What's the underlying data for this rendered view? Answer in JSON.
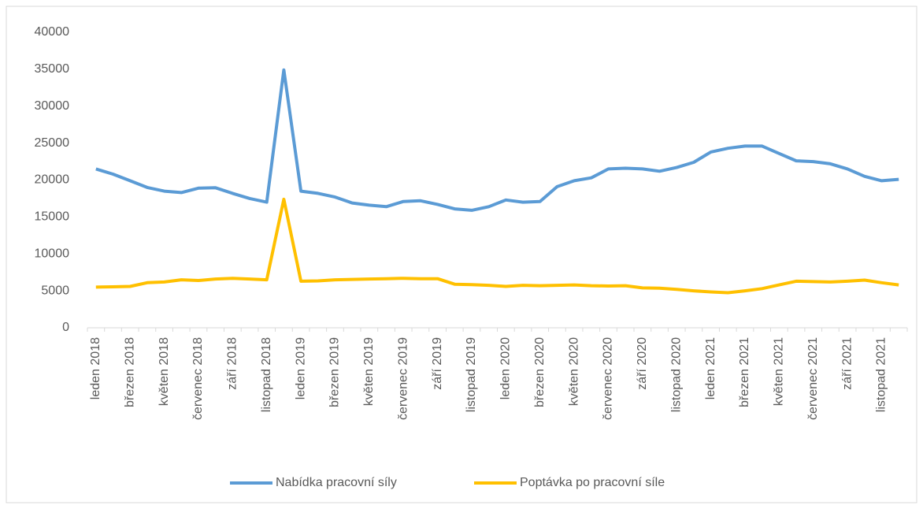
{
  "chart_data": {
    "type": "line",
    "categories": [
      "leden 2018",
      null,
      "březen 2018",
      null,
      "květen 2018",
      null,
      "červenec 2018",
      null,
      "září 2018",
      null,
      "listopad 2018",
      null,
      "leden 2019",
      null,
      "březen 2019",
      null,
      "květen 2019",
      null,
      "červenec 2019",
      null,
      "září 2019",
      null,
      "listopad 2019",
      null,
      "leden 2020",
      null,
      "březen 2020",
      null,
      "květen 2020",
      null,
      "červenec 2020",
      null,
      "září 2020",
      null,
      "listopad 2020",
      null,
      "leden 2021",
      null,
      "březen 2021",
      null,
      "květen 2021",
      null,
      "červenec 2021",
      null,
      "září 2021",
      null,
      "listopad 2021",
      null
    ],
    "series": [
      {
        "name": "Nabídka pracovní síly",
        "color": "#5b9bd5",
        "values": [
          21500,
          20800,
          19900,
          19000,
          18500,
          18300,
          18900,
          18950,
          18200,
          17500,
          17000,
          34900,
          18500,
          18200,
          17700,
          16900,
          16600,
          16400,
          17100,
          17200,
          16700,
          16100,
          15900,
          16400,
          17300,
          17000,
          17100,
          19100,
          19900,
          20300,
          21500,
          21600,
          21500,
          21200,
          21700,
          22400,
          23800,
          24300,
          24600,
          24600,
          23600,
          22600,
          22500,
          22200,
          21500,
          20500,
          19900,
          20100
        ]
      },
      {
        "name": "Poptávka po pracovní síle",
        "color": "#ffc000",
        "values": [
          5500,
          5550,
          5600,
          6100,
          6200,
          6500,
          6400,
          6600,
          6700,
          6600,
          6500,
          17400,
          6300,
          6350,
          6500,
          6550,
          6600,
          6650,
          6700,
          6650,
          6650,
          5900,
          5850,
          5750,
          5600,
          5750,
          5700,
          5750,
          5800,
          5700,
          5650,
          5700,
          5400,
          5350,
          5200,
          5000,
          4850,
          4750,
          5000,
          5300,
          5800,
          6300,
          6250,
          6200,
          6300,
          6450,
          6100,
          5800
        ]
      }
    ],
    "ylim": [
      0,
      40000
    ],
    "yticks": [
      0,
      5000,
      10000,
      15000,
      20000,
      25000,
      30000,
      35000,
      40000
    ],
    "legend": "bottom"
  }
}
